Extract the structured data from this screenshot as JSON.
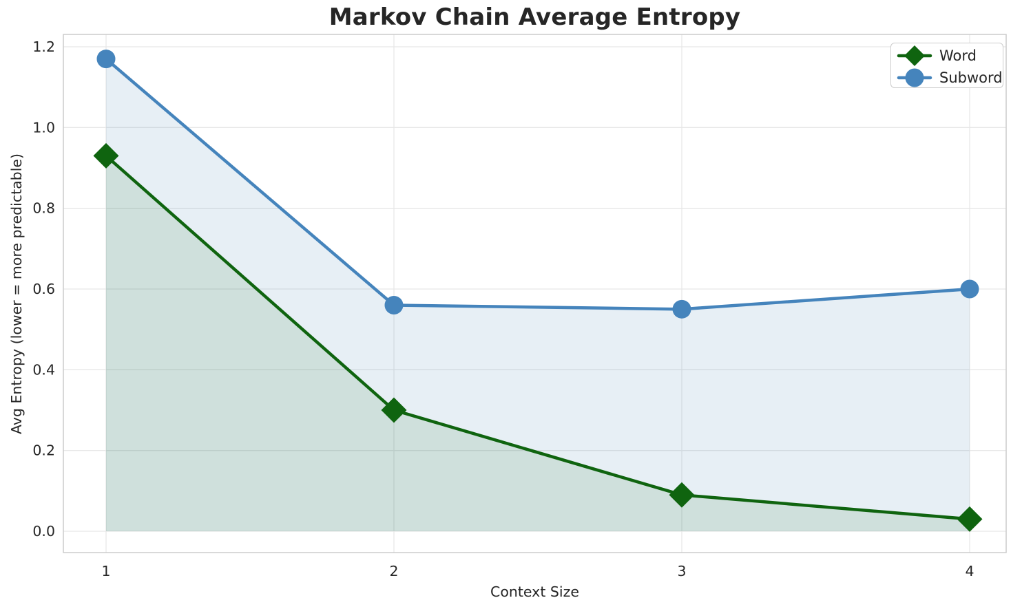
{
  "title": "Markov Chain Average Entropy",
  "chart_data": {
    "type": "line",
    "title": "Markov Chain Average Entropy",
    "xlabel": "Context Size",
    "ylabel": "Avg Entropy (lower = more predictable)",
    "x": [
      1,
      2,
      3,
      4
    ],
    "xticks": [
      "1",
      "2",
      "3",
      "4"
    ],
    "yticks": [
      "0.0",
      "0.2",
      "0.4",
      "0.6",
      "0.8",
      "1.0",
      "1.2"
    ],
    "ylim": [
      0,
      1.2
    ],
    "grid": true,
    "legend_position": "upper right",
    "series": [
      {
        "name": "Word",
        "marker": "diamond",
        "color": "#0f640f",
        "fill": "rgba(0,100,0,0.10)",
        "values": [
          0.93,
          0.3,
          0.09,
          0.03
        ]
      },
      {
        "name": "Subword",
        "marker": "circle",
        "color": "#4584bc",
        "fill": "rgba(70,130,180,0.13)",
        "values": [
          1.17,
          0.56,
          0.55,
          0.6
        ]
      }
    ]
  },
  "colors": {
    "word_green": "#0f640f",
    "subword_blue": "#4584bc",
    "grid": "#e7e7e7",
    "spine": "#cccccc",
    "text": "#262626",
    "background": "#ffffff"
  }
}
